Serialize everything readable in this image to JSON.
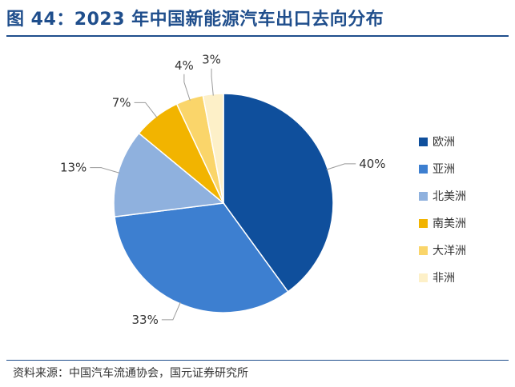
{
  "header": {
    "title": "图 44：2023 年中国新能源汽车出口去向分布"
  },
  "footer": {
    "source": "资料来源：中国汽车流通协会，国元证券研究所"
  },
  "chart_data": {
    "type": "pie",
    "title": "图 44：2023 年中国新能源汽车出口去向分布",
    "legend_position": "right",
    "slices": [
      {
        "label": "欧洲",
        "value": 40,
        "display": "40%",
        "color": "#0f4f9c"
      },
      {
        "label": "亚洲",
        "value": 33,
        "display": "33%",
        "color": "#3d7fd0"
      },
      {
        "label": "北美洲",
        "value": 13,
        "display": "13%",
        "color": "#8fb1de"
      },
      {
        "label": "南美洲",
        "value": 7,
        "display": "7%",
        "color": "#f2b400"
      },
      {
        "label": "大洋洲",
        "value": 4,
        "display": "4%",
        "color": "#fad56a"
      },
      {
        "label": "非洲",
        "value": 3,
        "display": "3%",
        "color": "#fdf0c8"
      }
    ]
  }
}
